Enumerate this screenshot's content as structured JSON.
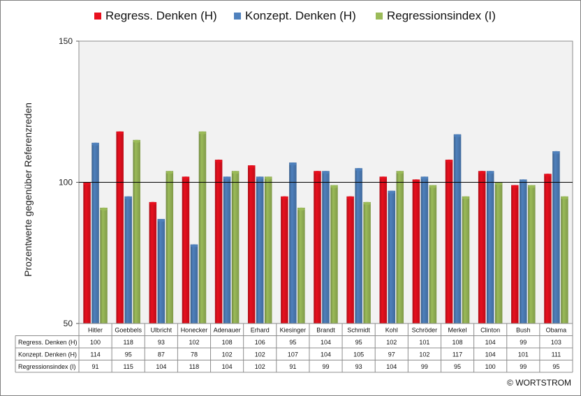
{
  "chart_data": {
    "type": "bar",
    "ylabel": "Prozentwerte  gegenüber Referenzreden",
    "xlabel": "",
    "ylim": [
      50,
      150
    ],
    "yticks": [
      50,
      100,
      150
    ],
    "reference_line": 100,
    "grid": false,
    "legend_position": "top",
    "categories": [
      "Hitler",
      "Goebbels",
      "Ulbricht",
      "Honecker",
      "Adenauer",
      "Erhard",
      "Kiesinger",
      "Brandt",
      "Schmidt",
      "Kohl",
      "Schröder",
      "Merkel",
      "Clinton",
      "Bush",
      "Obama"
    ],
    "series": [
      {
        "name": "Regress. Denken (H)",
        "table_label": "Regress. Denken (H)",
        "color": "#e8101e",
        "values": [
          100,
          118,
          93,
          102,
          108,
          106,
          95,
          104,
          95,
          102,
          101,
          108,
          104,
          99,
          103
        ]
      },
      {
        "name": "Konzept. Denken (H)",
        "table_label": "Konzept. Denken (H)",
        "color": "#4f81bd",
        "values": [
          114,
          95,
          87,
          78,
          102,
          102,
          107,
          104,
          105,
          97,
          102,
          117,
          104,
          101,
          111
        ]
      },
      {
        "name": "Regressionsindex (I)",
        "table_label": "Regressionsindex (I)",
        "color": "#9bbb59",
        "values": [
          91,
          115,
          104,
          118,
          104,
          102,
          91,
          99,
          93,
          104,
          99,
          95,
          100,
          99,
          95
        ]
      }
    ]
  },
  "colors": {
    "plot_background": "#f2f2f2",
    "reference_line": "#000000"
  },
  "copyright": "© WORTSTROM"
}
